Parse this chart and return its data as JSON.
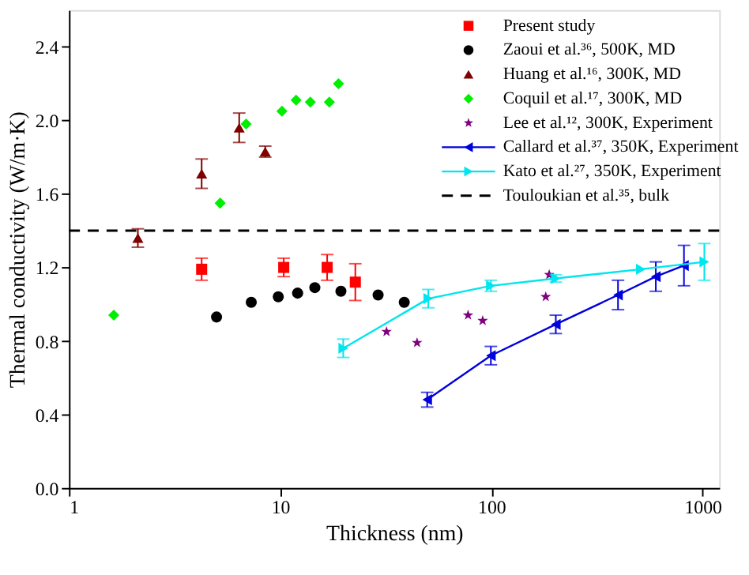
{
  "chart_data": {
    "type": "scatter",
    "xlabel": "Thickness (nm)",
    "ylabel": "Thermal conductivity (W/m·K)",
    "log": "x",
    "xlim": [
      1,
      1200
    ],
    "xticks": [
      1,
      10,
      100,
      1000
    ],
    "ylim": [
      0,
      2.6
    ],
    "yticks": [
      {
        "value": 0,
        "label": "0.0"
      },
      0.4,
      0.8,
      1.2,
      1.6,
      {
        "value": 2,
        "label": "2.0"
      },
      2.4
    ],
    "grid": false,
    "legend": "top right",
    "series": [
      {
        "name": "Present study",
        "marker": "square",
        "color": "#ff0000",
        "x": [
          4.25,
          10.4,
          16.7,
          22.7
        ],
        "values": [
          1.19,
          1.2,
          1.2,
          1.12
        ],
        "errors": [
          0.06,
          0.05,
          0.07,
          0.1
        ]
      },
      {
        "name": "Zaoui et al.³⁶, 500K, MD",
        "marker": "circle",
        "color": "#000000",
        "x": [
          5.0,
          7.3,
          9.8,
          12.1,
          14.6,
          19.4,
          29.1,
          38.7
        ],
        "values": [
          0.93,
          1.01,
          1.04,
          1.06,
          1.09,
          1.07,
          1.05,
          1.01
        ]
      },
      {
        "name": "Huang et al.¹⁶, 300K, MD",
        "marker": "triangle",
        "color": "#800000",
        "x": [
          2.12,
          4.25,
          6.4,
          8.5
        ],
        "values": [
          1.36,
          1.71,
          1.96,
          1.83
        ],
        "errors": [
          0.05,
          0.08,
          0.08,
          0.03
        ]
      },
      {
        "name": "Coquil et al.¹⁷, 300K, MD",
        "marker": "diamond",
        "color": "#00ee00",
        "x": [
          1.63,
          5.2,
          6.9,
          10.2,
          11.9,
          13.9,
          17.1,
          18.9
        ],
        "values": [
          0.94,
          1.55,
          1.98,
          2.05,
          2.11,
          2.1,
          2.1,
          2.2
        ]
      },
      {
        "name": "Lee et al.¹², 300K, Experiment",
        "marker": "star",
        "color": "#800080",
        "x": [
          31.9,
          44.5,
          77.6,
          91,
          181,
          188
        ],
        "values": [
          0.85,
          0.79,
          0.94,
          0.91,
          1.04,
          1.16
        ]
      },
      {
        "name": "Callard et al.³⁷, 350K, Experiment",
        "type": "line",
        "marker": "triangle-left",
        "color": "#0000dd",
        "x": [
          49.7,
          99.5,
          202,
          398,
          601,
          817
        ],
        "values": [
          0.48,
          0.72,
          0.89,
          1.05,
          1.15,
          1.21
        ],
        "errors": [
          0.04,
          0.05,
          0.05,
          0.08,
          0.08,
          0.11
        ]
      },
      {
        "name": "Kato et al.²⁷, 350K, Experiment",
        "type": "line",
        "marker": "triangle-right",
        "color": "#00e5ee",
        "x": [
          19.9,
          50.3,
          99.5,
          202,
          510,
          1020
        ],
        "values": [
          0.76,
          1.03,
          1.1,
          1.14,
          1.19,
          1.23
        ],
        "errors": [
          0.05,
          0.05,
          0.03,
          0.02,
          null,
          0.1
        ]
      }
    ],
    "ref_lines": [
      {
        "axis": "y",
        "value": 1.4,
        "label": "Touloukian et al.³⁵, bulk",
        "color": "#000000",
        "line_style": "dashed"
      }
    ]
  }
}
